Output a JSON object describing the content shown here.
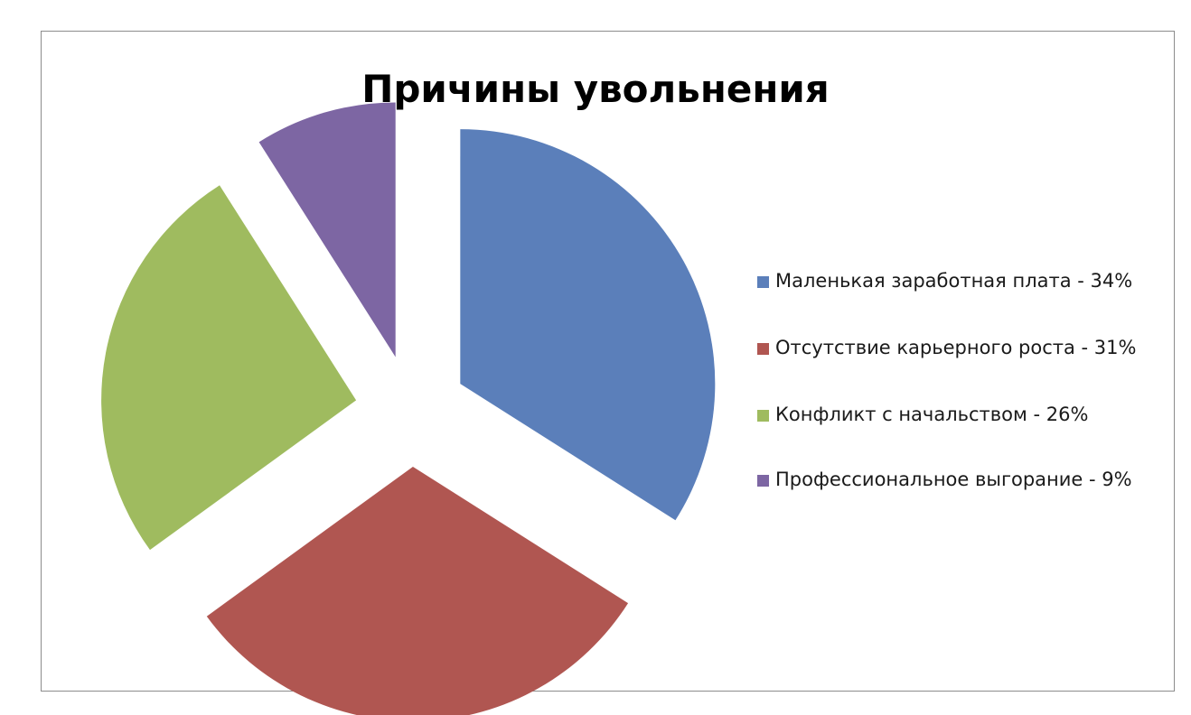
{
  "chart_data": {
    "type": "pie",
    "title": "Причины увольнения",
    "legend_position": "right",
    "categories": [
      "Маленькая заработная плата - 34%",
      "Отсутствие  карьерного роста - 31%",
      "Конфликт с начальством  - 26%",
      "Профессиональное выгорание - 9%"
    ],
    "values": [
      34,
      31,
      26,
      9
    ],
    "colors": [
      "#5b7fba",
      "#b05651",
      "#9fbb5f",
      "#7d66a3"
    ],
    "exploded": true
  }
}
